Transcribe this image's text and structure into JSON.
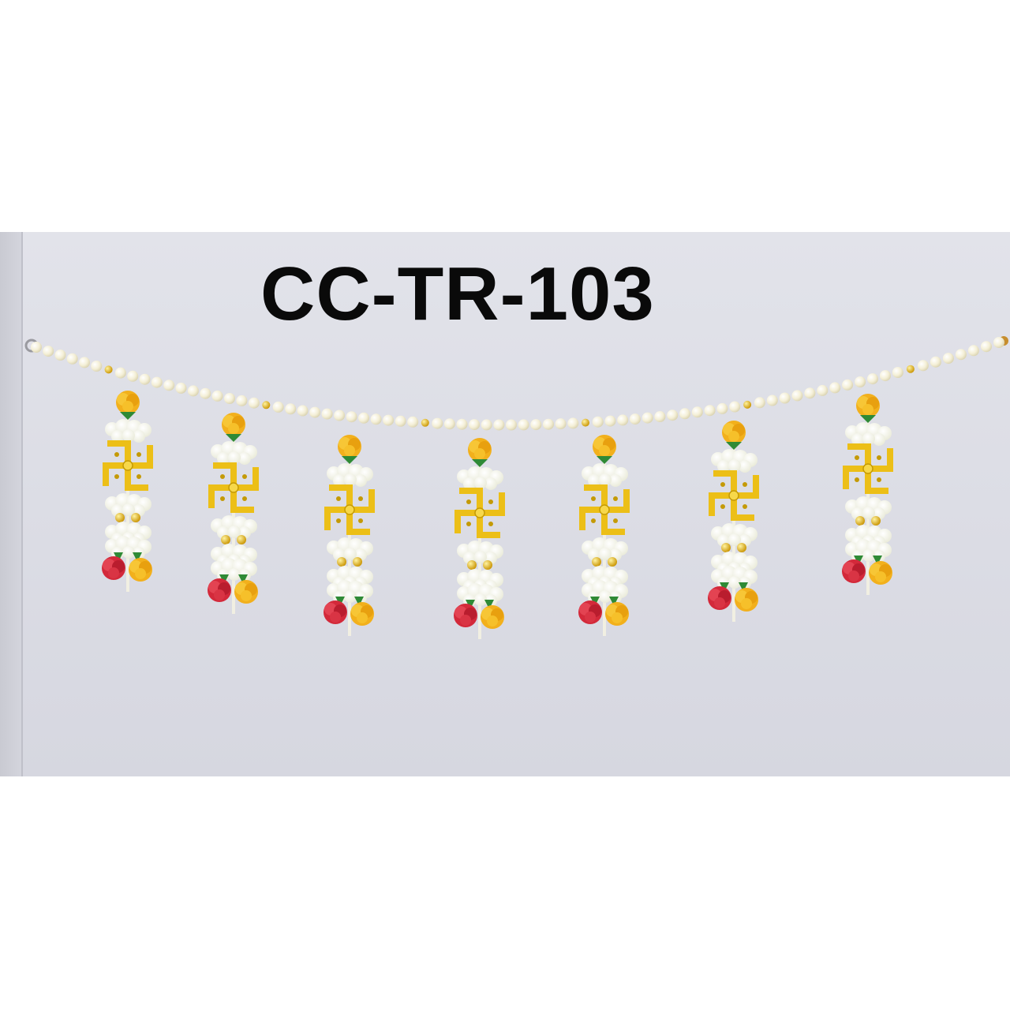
{
  "product": {
    "code": "CC-TR-103"
  },
  "colors": {
    "wall": "#dcdde6",
    "pearl": "#f3efd9",
    "gold": "#e9b814",
    "white_flower": "#fbfbf2",
    "red_flower": "#d8313b",
    "yellow_flower": "#f3b51b",
    "leaf": "#2f8a36"
  },
  "scene": {
    "description_icons": [
      "pearl-string",
      "swastik-ornament",
      "rose-cluster"
    ],
    "hanging_count": 7
  }
}
